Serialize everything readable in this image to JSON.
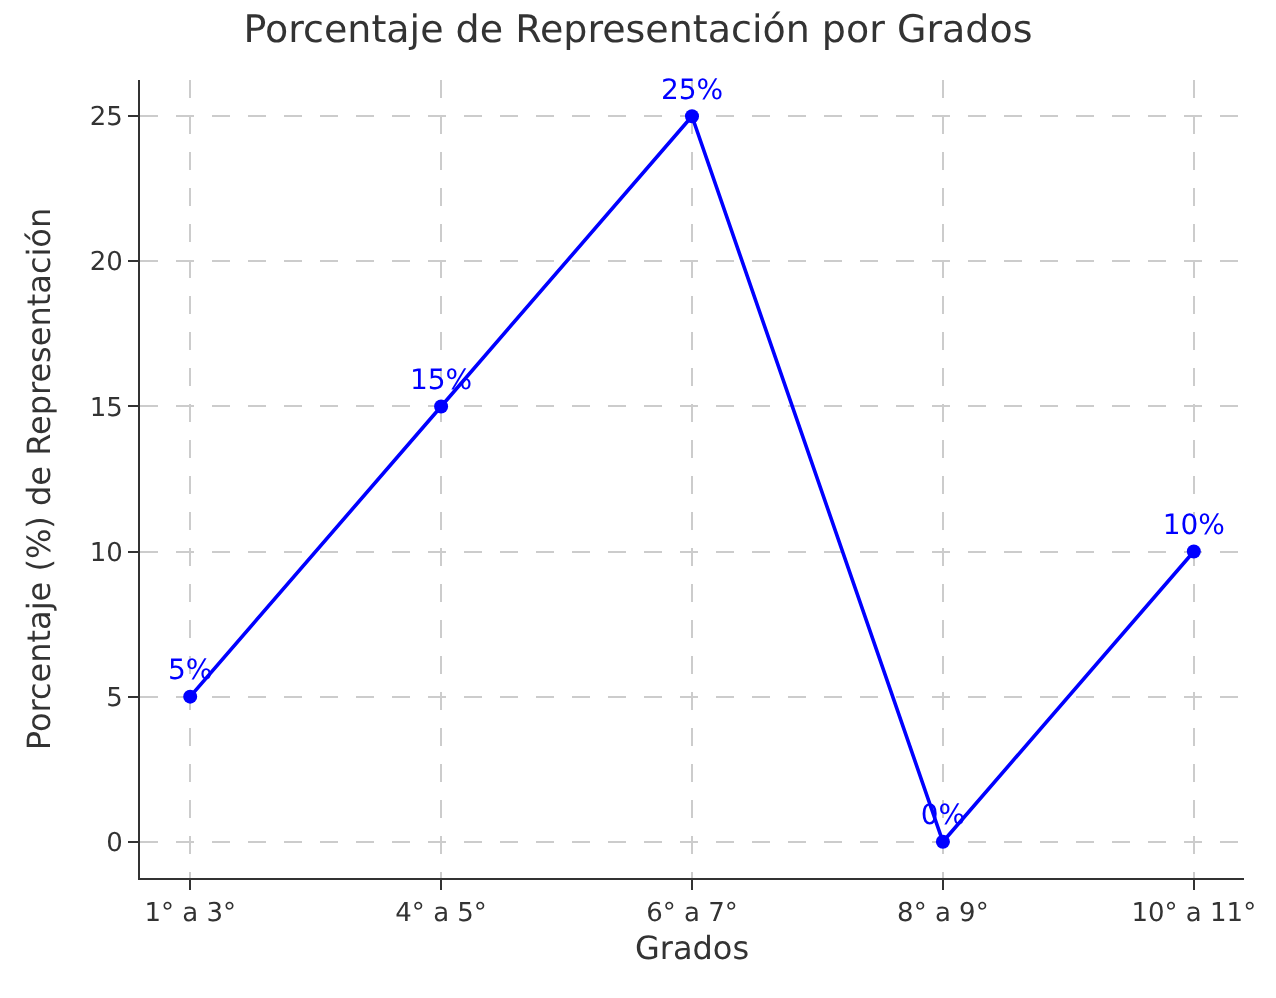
{
  "chart_data": {
    "type": "line",
    "title": "Porcentaje de Representación por Grados",
    "xlabel": "Grados",
    "ylabel": "Porcentaje (%) de Representación",
    "categories": [
      "1° a 3°",
      "4° a 5°",
      "6° a 7°",
      "8° a 9°",
      "10° a 11°"
    ],
    "series": [
      {
        "color": "#0000ff",
        "values": [
          5,
          15,
          25,
          0,
          10
        ],
        "value_labels": [
          "5%",
          "15%",
          "25%",
          "0%",
          "10%"
        ]
      }
    ],
    "ylim": [
      -1.25,
      26.25
    ],
    "yticks": [
      0,
      5,
      10,
      15,
      20,
      25
    ],
    "grid": true,
    "marker": "circle",
    "line_style": "solid"
  }
}
